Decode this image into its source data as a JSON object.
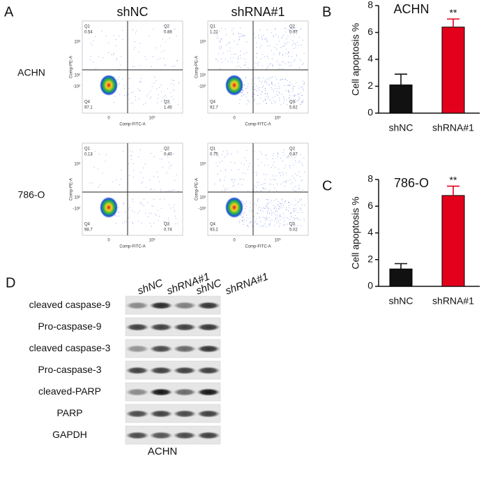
{
  "panel_labels": [
    "A",
    "D"
  ],
  "flow": {
    "columns": [
      "shNC",
      "shRNA#1"
    ],
    "rows": [
      "ACHN",
      "786-O"
    ],
    "x_label": "Comp-FITC-A",
    "y_label": "Comp-PE-A",
    "y_tick_labels": [
      "10³",
      "10²",
      "-10²"
    ],
    "x_tick_labels": [
      "0",
      "10³"
    ],
    "quadrants": [
      "Q1",
      "Q2",
      "Q3",
      "Q4"
    ],
    "plots": [
      [
        "0.54",
        "0.88",
        "1.45",
        "97.1"
      ],
      [
        "1.21",
        "0.97",
        "5.62",
        "92.7"
      ],
      [
        "0.13",
        "0.40",
        "0.74",
        "98.7"
      ],
      [
        "0.75",
        "0.87",
        "5.02",
        "93.2"
      ]
    ]
  },
  "chart_data": [
    {
      "type": "bar",
      "panel": "B",
      "title": "ACHN",
      "y_label": "Cell  apoptosis %",
      "categories": [
        "shNC",
        "shRNA#1"
      ],
      "values": [
        2.1,
        6.4
      ],
      "errors": [
        0.8,
        0.6
      ],
      "significance": [
        null,
        "**"
      ],
      "colors": [
        "#111111",
        "#e3001b"
      ],
      "ylim": [
        0,
        8
      ],
      "yticks": [
        0,
        2,
        4,
        6,
        8
      ]
    },
    {
      "type": "bar",
      "panel": "C",
      "title": "786-O",
      "y_label": "Cell  apoptosis %",
      "categories": [
        "shNC",
        "shRNA#1"
      ],
      "values": [
        1.3,
        6.8
      ],
      "errors": [
        0.4,
        0.7
      ],
      "significance": [
        null,
        "**"
      ],
      "colors": [
        "#111111",
        "#e3001b"
      ],
      "ylim": [
        0,
        8
      ],
      "yticks": [
        0,
        2,
        4,
        6,
        8
      ]
    }
  ],
  "blot": {
    "lanes": [
      "shNC",
      "shRNA#1",
      "shNC",
      "shRNA#1"
    ],
    "rows": [
      "cleaved caspase-9",
      "Pro-caspase-9",
      "cleaved caspase-3",
      "Pro-caspase-3",
      "cleaved-PARP",
      "PARP",
      "GAPDH"
    ],
    "caption": "ACHN"
  }
}
